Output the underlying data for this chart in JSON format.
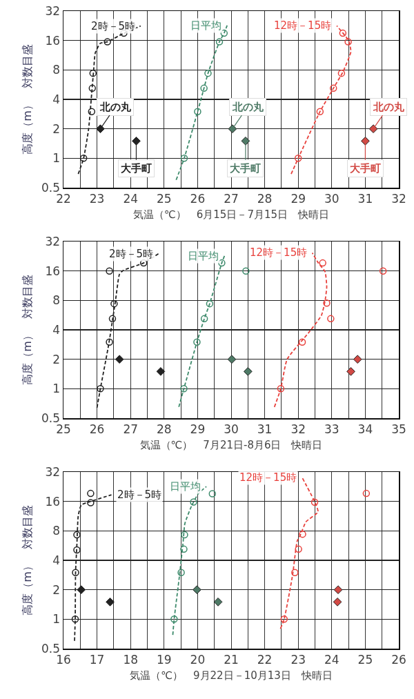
{
  "chart_data": [
    {
      "type": "scatter",
      "xlabel": "気温（℃）　6月15日－7月15日　快晴日",
      "ylabel": "高度（m）　対数目盛",
      "log": "y",
      "grid": true,
      "xlim": [
        22,
        32
      ],
      "xticks": [
        22,
        {
          "value": 22.5,
          "label": null
        },
        23,
        {
          "value": 23.5,
          "label": null
        },
        24,
        {
          "value": 24.5,
          "label": null
        },
        25,
        {
          "value": 25.5,
          "label": null
        },
        26,
        {
          "value": 26.5,
          "label": null
        },
        27,
        {
          "value": 27.5,
          "label": null
        },
        28,
        {
          "value": 28.5,
          "label": null
        },
        29,
        {
          "value": 29.5,
          "label": null
        },
        30,
        {
          "value": 30.5,
          "label": null
        },
        31,
        {
          "value": 31.5,
          "label": null
        },
        32
      ],
      "ylim": [
        0.5,
        32
      ],
      "yticks": [
        0.5,
        1,
        2,
        4,
        8,
        16,
        32
      ],
      "series": [
        {
          "type": "line",
          "name": "2時－5時",
          "color": "#222222",
          "line_style": "dashed",
          "marker": "none",
          "x": [
            22.44,
            22.6,
            22.75,
            22.85,
            22.9,
            22.95,
            23.1,
            23.31,
            23.8,
            24.3
          ],
          "values": [
            0.69,
            1,
            2,
            5,
            8,
            12,
            15,
            15.5,
            19,
            22.5
          ]
        },
        {
          "color": "#222222",
          "marker": "circle",
          "x": [
            22.6,
            22.84,
            22.86,
            22.88,
            23.31,
            23.8
          ],
          "values": [
            1,
            3,
            5.2,
            7.4,
            15.5,
            19
          ]
        },
        {
          "color": "#222222",
          "marker": "diamond",
          "x": [
            23.1,
            24.17
          ],
          "values": [
            2,
            1.5
          ]
        },
        {
          "type": "line",
          "name": "日平均",
          "color": "#3d8a6b",
          "line_style": "dashed",
          "marker": "none",
          "x": [
            25.36,
            25.6,
            26.0,
            26.19,
            26.31,
            26.65,
            26.79,
            26.88
          ],
          "values": [
            0.6,
            1,
            3,
            5.2,
            7.4,
            15.5,
            19,
            22.8
          ]
        },
        {
          "color": "#3d8a6b",
          "marker": "circle",
          "x": [
            25.6,
            26.0,
            26.19,
            26.31,
            26.65,
            26.79
          ],
          "values": [
            1,
            3,
            5.2,
            7.4,
            15.5,
            19
          ]
        },
        {
          "color": "#4e7a66",
          "marker": "diamond",
          "x": [
            27.04,
            27.43
          ],
          "values": [
            2,
            1.5
          ]
        },
        {
          "type": "line",
          "name": "12時－15時",
          "color": "#e8413c",
          "line_style": "dashed",
          "marker": "none",
          "x": [
            28.79,
            29.0,
            29.65,
            30.05,
            30.33,
            30.57,
            30.5,
            30.15
          ],
          "values": [
            0.69,
            1,
            3,
            5.2,
            7.6,
            12.3,
            16,
            22.6
          ]
        },
        {
          "color": "#e8413c",
          "marker": "circle",
          "x": [
            29.0,
            29.65,
            30.05,
            30.29,
            30.49,
            30.33
          ],
          "values": [
            1,
            3,
            5.2,
            7.4,
            15.5,
            19
          ]
        },
        {
          "color": "#d24a45",
          "marker": "diamond",
          "x": [
            31.24,
            31.0
          ],
          "values": [
            2,
            1.5
          ]
        }
      ],
      "annotations": [
        {
          "text": "北の丸",
          "x": 23.1,
          "y": 2
        },
        {
          "text": "大手町",
          "x": 24.17,
          "y": 1.5
        },
        {
          "text": "北の丸",
          "x": 27.04,
          "y": 2
        },
        {
          "text": "大手町",
          "x": 27.43,
          "y": 1.5
        },
        {
          "text": "北の丸",
          "x": 31.24,
          "y": 2
        },
        {
          "text": "大手町",
          "x": 31.0,
          "y": 1.5
        }
      ]
    },
    {
      "type": "scatter",
      "xlabel": "気温（℃）　7月21日-8月6日　快晴日",
      "ylabel": "高度（m）　対数目盛",
      "log": "y",
      "grid": true,
      "xlim": [
        25,
        35
      ],
      "xticks": [
        25,
        {
          "value": 25.5,
          "label": null
        },
        26,
        {
          "value": 26.5,
          "label": null
        },
        27,
        {
          "value": 27.5,
          "label": null
        },
        28,
        {
          "value": 28.5,
          "label": null
        },
        29,
        {
          "value": 29.5,
          "label": null
        },
        30,
        {
          "value": 30.5,
          "label": null
        },
        31,
        {
          "value": 31.5,
          "label": null
        },
        32,
        {
          "value": 32.5,
          "label": null
        },
        33,
        {
          "value": 33.5,
          "label": null
        },
        34,
        {
          "value": 34.5,
          "label": null
        },
        35
      ],
      "ylim": [
        0.5,
        32
      ],
      "yticks": [
        0.5,
        1,
        2,
        4,
        8,
        16,
        32
      ],
      "series": [
        {
          "type": "line",
          "name": "2時－5時",
          "color": "#222222",
          "line_style": "dashed",
          "marker": "none",
          "x": [
            26.0,
            26.1,
            26.35,
            26.55,
            26.67,
            26.78,
            27.39,
            27.83
          ],
          "values": [
            0.64,
            1,
            2.85,
            7.9,
            14.8,
            16.2,
            19.3,
            24
          ]
        },
        {
          "color": "#222222",
          "marker": "circle",
          "x": [
            26.1,
            26.37,
            26.46,
            26.51,
            27.39
          ],
          "values": [
            1,
            3,
            5.2,
            7.4,
            19.3
          ]
        },
        {
          "color": "#222222",
          "marker": "diamond",
          "x": [
            26.67,
            27.9
          ],
          "values": [
            2,
            1.5
          ]
        },
        {
          "type": "line",
          "name": "日平均",
          "color": "#3d8a6b",
          "line_style": "dashed",
          "marker": "none",
          "x": [
            28.44,
            28.59,
            28.98,
            29.2,
            29.36,
            29.72,
            29.8
          ],
          "values": [
            0.65,
            1,
            3,
            5.2,
            7.4,
            19.3,
            22.8
          ]
        },
        {
          "color": "#3d8a6b",
          "marker": "circle",
          "x": [
            28.59,
            28.98,
            29.2,
            29.36,
            29.72
          ],
          "values": [
            1,
            3,
            5.2,
            7.4,
            19.3
          ]
        },
        {
          "color": "#4e7a66",
          "marker": "diamond",
          "x": [
            30.02,
            30.5
          ],
          "values": [
            2,
            1.5
          ]
        },
        {
          "type": "line",
          "name": "12時－15時",
          "color": "#e8413c",
          "line_style": "dashed",
          "marker": "none",
          "x": [
            31.29,
            31.48,
            31.67,
            32.3,
            32.69,
            32.8,
            32.85,
            32.8,
            32.6,
            32.42
          ],
          "values": [
            0.65,
            1,
            2,
            3.7,
            5.6,
            7.9,
            11,
            15.7,
            19.3,
            24.5
          ]
        },
        {
          "color": "#e8413c",
          "marker": "circle",
          "x": [
            31.48,
            32.12,
            32.97,
            32.85,
            32.73
          ],
          "values": [
            1,
            3,
            5.2,
            7.5,
            19.3
          ]
        },
        {
          "color": "#d24a45",
          "marker": "diamond",
          "x": [
            33.77,
            33.57
          ],
          "values": [
            2,
            1.5
          ]
        },
        {
          "colors": [
            "#222222",
            "#3d8a6b",
            "#e8413c"
          ],
          "marker": "circle",
          "x": [
            26.37,
            30.44,
            34.53
          ],
          "values": [
            16,
            16,
            16
          ]
        }
      ]
    },
    {
      "type": "scatter",
      "xlabel": "気温（℃）　9月22日－10月13日　快晴日",
      "ylabel": "高度（m）　対数目盛",
      "log": "y",
      "grid": true,
      "xlim": [
        16,
        26
      ],
      "xticks": [
        16,
        {
          "value": 16.5,
          "label": null
        },
        17,
        {
          "value": 17.5,
          "label": null
        },
        18,
        {
          "value": 18.5,
          "label": null
        },
        19,
        {
          "value": 19.5,
          "label": null
        },
        20,
        {
          "value": 20.5,
          "label": null
        },
        21,
        {
          "value": 21.5,
          "label": null
        },
        22,
        {
          "value": 22.5,
          "label": null
        },
        23,
        {
          "value": 23.5,
          "label": null
        },
        24,
        {
          "value": 24.5,
          "label": null
        },
        25,
        {
          "value": 25.5,
          "label": null
        },
        26
      ],
      "ylim": [
        0.5,
        32
      ],
      "yticks": [
        0.5,
        1,
        2,
        4,
        8,
        16,
        32
      ],
      "series": [
        {
          "type": "line",
          "name": "2時－5時",
          "color": "#222222",
          "line_style": "dashed",
          "marker": "none",
          "x": [
            16.33,
            16.35,
            16.36,
            16.4,
            16.44,
            16.53,
            16.81,
            17.43
          ],
          "values": [
            0.6,
            1,
            3,
            5.8,
            11.4,
            14.7,
            16,
            18.7
          ]
        },
        {
          "color": "#222222",
          "marker": "circle",
          "x": [
            16.35,
            16.36,
            16.4,
            16.4,
            16.81
          ],
          "values": [
            1,
            3,
            5.1,
            7.3,
            15.5
          ]
        },
        {
          "color": "#222222",
          "marker": "diamond",
          "x": [
            16.53,
            17.39
          ],
          "values": [
            2,
            1.5
          ]
        },
        {
          "type": "line",
          "name": "日平均",
          "color": "#3d8a6b",
          "line_style": "dashed",
          "marker": "none",
          "x": [
            19.26,
            19.3,
            19.46,
            19.57,
            19.62,
            19.82,
            20.02,
            20.26
          ],
          "values": [
            0.69,
            1,
            2.8,
            6.3,
            9.5,
            14.4,
            19.2,
            22.7
          ]
        },
        {
          "color": "#3d8a6b",
          "marker": "circle",
          "x": [
            19.3,
            19.51,
            19.59,
            19.61,
            19.88
          ],
          "values": [
            1,
            3,
            5.2,
            7.3,
            15.8
          ]
        },
        {
          "color": "#4e7a66",
          "marker": "diamond",
          "x": [
            19.98,
            20.61
          ],
          "values": [
            2,
            1.5
          ]
        },
        {
          "type": "line",
          "name": "12時－15時",
          "color": "#e8413c",
          "line_style": "dashed",
          "marker": "none",
          "x": [
            22.47,
            22.58,
            22.83,
            22.97,
            23.07,
            23.23,
            23.59,
            23.51,
            23.12
          ],
          "values": [
            0.8,
            1,
            2.8,
            6.3,
            7.3,
            9.9,
            12.5,
            15.4,
            28
          ]
        },
        {
          "color": "#e8413c",
          "marker": "circle",
          "x": [
            22.58,
            22.9,
            23.01,
            23.13,
            23.49
          ],
          "values": [
            1,
            3,
            5.2,
            7.4,
            15.7
          ]
        },
        {
          "color": "#d24a45",
          "marker": "diamond",
          "x": [
            24.19,
            24.17
          ],
          "values": [
            2,
            1.5
          ]
        },
        {
          "colors": [
            "#222222",
            "#3d8a6b",
            "#e8413c"
          ],
          "marker": "circle",
          "x": [
            16.81,
            20.44,
            25.03
          ],
          "values": [
            19.3,
            19.2,
            19.3
          ]
        }
      ]
    }
  ]
}
